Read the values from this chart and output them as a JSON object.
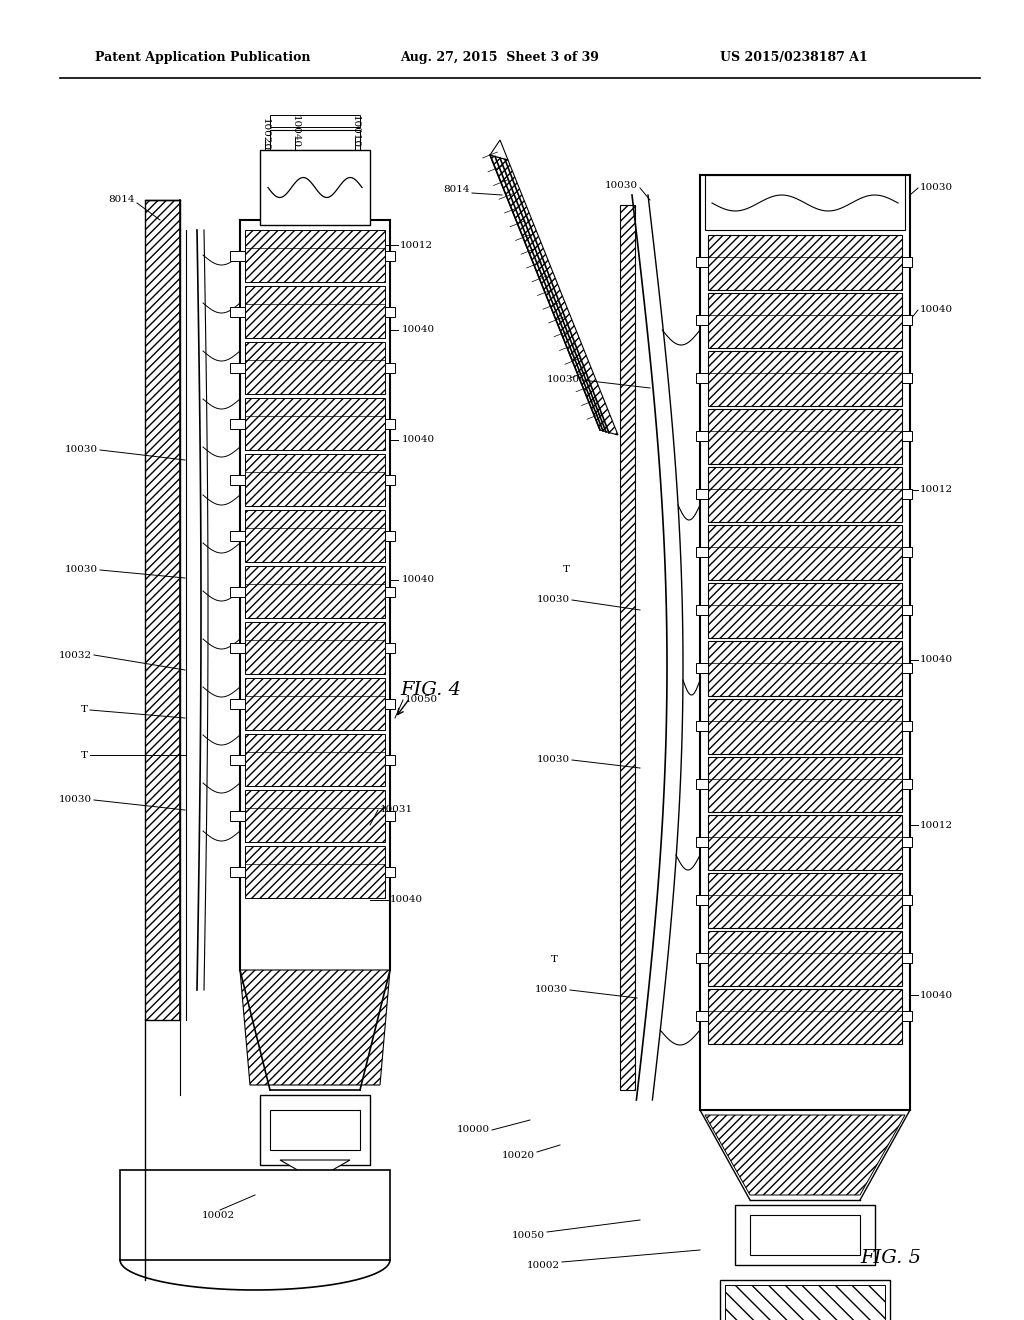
{
  "header_left": "Patent Application Publication",
  "header_mid": "Aug. 27, 2015  Sheet 3 of 39",
  "header_right": "US 2015/0238187 A1",
  "fig4_label": "FIG. 4",
  "fig5_label": "FIG. 5",
  "background_color": "#ffffff"
}
